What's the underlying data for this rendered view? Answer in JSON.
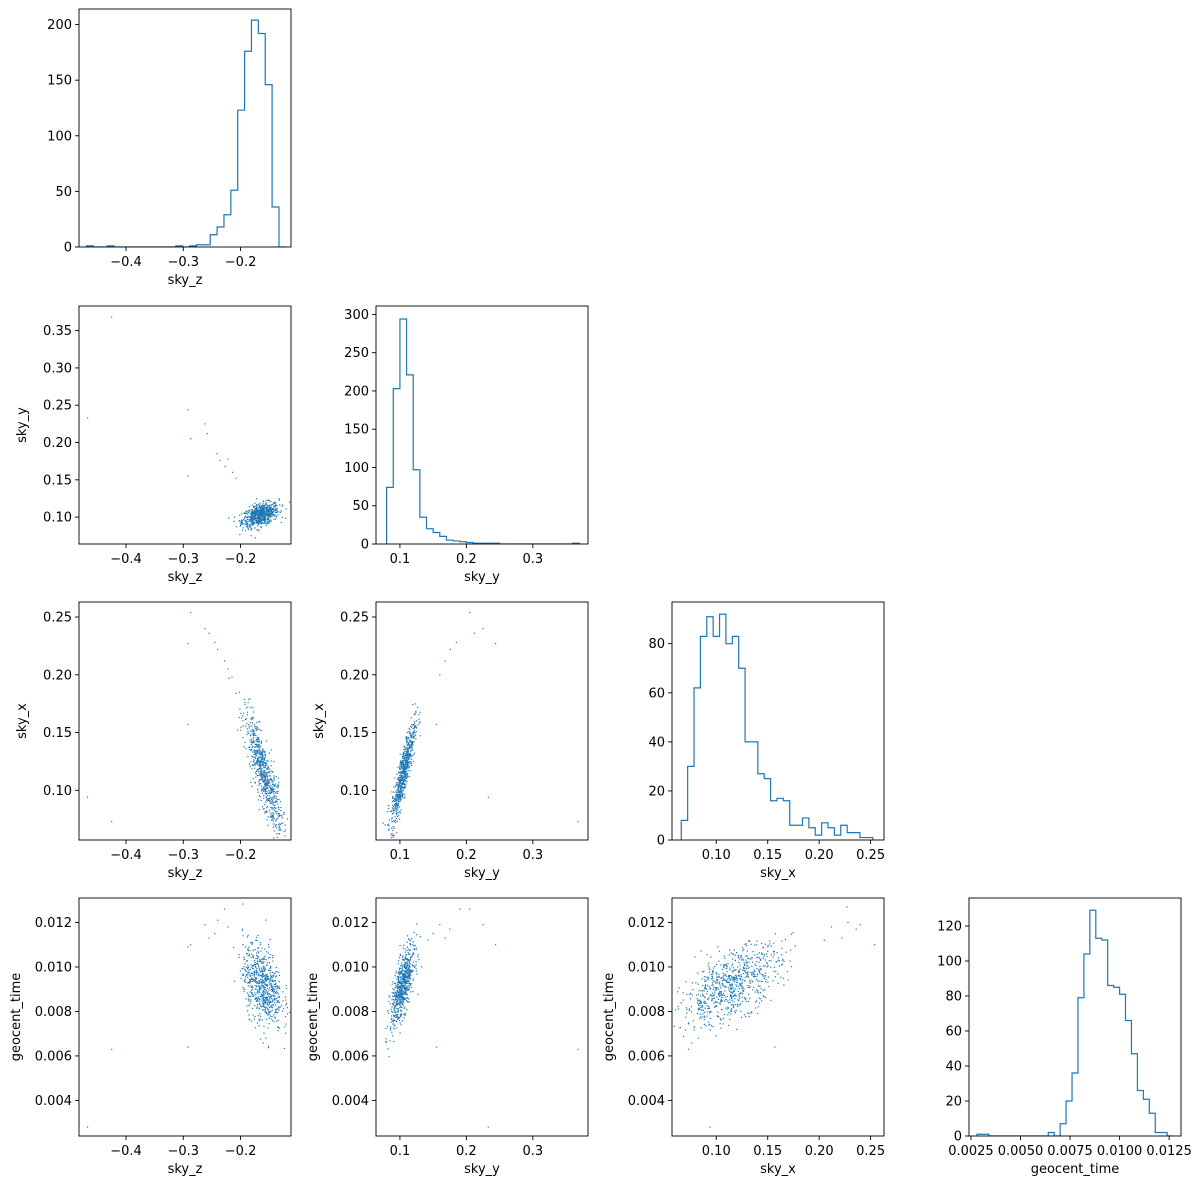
{
  "colors": {
    "accent": "#1f77b4",
    "axes": "#000000"
  },
  "chart_data": [
    {
      "id": "hist-sky_z",
      "type": "bar",
      "histtype": "step",
      "xlabel": "sky_z",
      "ylabel": "",
      "xlim": [
        -0.482,
        -0.112
      ],
      "ylim": [
        0,
        214
      ],
      "xticks": [
        -0.4,
        -0.3,
        -0.2
      ],
      "xtick_labels": [
        "−0.4",
        "−0.3",
        "−0.2"
      ],
      "yticks": [
        0,
        50,
        100,
        150,
        200
      ],
      "ytick_labels": [
        "0",
        "50",
        "100",
        "150",
        "200"
      ],
      "bin_edges": [
        -0.469,
        -0.457,
        -0.445,
        -0.433,
        -0.421,
        -0.409,
        -0.397,
        -0.385,
        -0.373,
        -0.361,
        -0.349,
        -0.337,
        -0.325,
        -0.313,
        -0.301,
        -0.289,
        -0.277,
        -0.265,
        -0.253,
        -0.241,
        -0.229,
        -0.217,
        -0.205,
        -0.193,
        -0.181,
        -0.169,
        -0.157,
        -0.145,
        -0.133,
        -0.121
      ],
      "values": [
        1,
        0,
        0,
        1,
        0,
        0,
        0,
        0,
        0,
        0,
        0,
        0,
        0,
        1,
        0,
        1,
        2,
        2,
        11,
        18,
        29,
        51,
        123,
        176,
        204,
        192,
        146,
        36,
        0
      ]
    },
    {
      "id": "scatter-sky_z-sky_y",
      "type": "scatter",
      "xlabel": "sky_z",
      "ylabel": "sky_y",
      "xlim": [
        -0.482,
        -0.112
      ],
      "ylim": [
        0.064,
        0.383
      ],
      "xticks": [
        -0.4,
        -0.3,
        -0.2
      ],
      "xtick_labels": [
        "−0.4",
        "−0.3",
        "−0.2"
      ],
      "yticks": [
        0.1,
        0.15,
        0.2,
        0.25,
        0.3,
        0.35
      ],
      "ytick_labels": [
        "0.10",
        "0.15",
        "0.20",
        "0.25",
        "0.30",
        "0.35"
      ],
      "points": [
        [
          -0.425,
          0.368
        ],
        [
          -0.467,
          0.233
        ],
        [
          -0.292,
          0.244
        ],
        [
          -0.287,
          0.205
        ],
        [
          -0.292,
          0.155
        ],
        [
          -0.262,
          0.225
        ],
        [
          -0.258,
          0.212
        ],
        [
          -0.241,
          0.185
        ],
        [
          -0.236,
          0.176
        ],
        [
          -0.227,
          0.168
        ],
        [
          -0.222,
          0.178
        ],
        [
          -0.214,
          0.16
        ],
        [
          -0.208,
          0.152
        ]
      ],
      "density_cloud": {
        "x_center": -0.165,
        "x_sd": 0.016,
        "y_center": 0.103,
        "y_sd": 0.008,
        "correlation": 0.45,
        "count": 700
      }
    },
    {
      "id": "hist-sky_y",
      "type": "bar",
      "histtype": "step",
      "xlabel": "sky_y",
      "ylabel": "",
      "xlim": [
        0.064,
        0.383
      ],
      "ylim": [
        0,
        311
      ],
      "xticks": [
        0.1,
        0.2,
        0.3
      ],
      "xtick_labels": [
        "0.1",
        "0.2",
        "0.3"
      ],
      "yticks": [
        0,
        50,
        100,
        150,
        200,
        250,
        300
      ],
      "ytick_labels": [
        "0",
        "50",
        "100",
        "150",
        "200",
        "250",
        "300"
      ],
      "bin_edges": [
        0.08,
        0.09,
        0.1,
        0.11,
        0.12,
        0.13,
        0.14,
        0.15,
        0.16,
        0.17,
        0.18,
        0.19,
        0.2,
        0.21,
        0.22,
        0.23,
        0.24,
        0.25,
        0.26,
        0.27,
        0.28,
        0.29,
        0.3,
        0.31,
        0.32,
        0.33,
        0.34,
        0.35,
        0.36,
        0.37
      ],
      "values": [
        74,
        203,
        294,
        221,
        97,
        35,
        20,
        15,
        10,
        5,
        4,
        3,
        2,
        1,
        1,
        1,
        1,
        0,
        0,
        0,
        0,
        0,
        0,
        0,
        0,
        0,
        0,
        0,
        1
      ]
    },
    {
      "id": "scatter-sky_z-sky_x",
      "type": "scatter",
      "xlabel": "sky_z",
      "ylabel": "sky_x",
      "xlim": [
        -0.482,
        -0.112
      ],
      "ylim": [
        0.057,
        0.263
      ],
      "xticks": [
        -0.4,
        -0.3,
        -0.2
      ],
      "xtick_labels": [
        "−0.4",
        "−0.3",
        "−0.2"
      ],
      "yticks": [
        0.1,
        0.15,
        0.2,
        0.25
      ],
      "ytick_labels": [
        "0.10",
        "0.15",
        "0.20",
        "0.25"
      ],
      "points": [
        [
          -0.467,
          0.094
        ],
        [
          -0.425,
          0.073
        ],
        [
          -0.292,
          0.227
        ],
        [
          -0.287,
          0.254
        ],
        [
          -0.292,
          0.157
        ],
        [
          -0.262,
          0.24
        ],
        [
          -0.255,
          0.236
        ],
        [
          -0.245,
          0.228
        ],
        [
          -0.24,
          0.222
        ],
        [
          -0.228,
          0.212
        ],
        [
          -0.222,
          0.205
        ],
        [
          -0.215,
          0.198
        ]
      ],
      "density_cloud": {
        "x_center": -0.16,
        "x_sd": 0.016,
        "y_center": 0.115,
        "y_sd": 0.025,
        "correlation": -0.85,
        "count": 700
      }
    },
    {
      "id": "scatter-sky_y-sky_x",
      "type": "scatter",
      "xlabel": "sky_y",
      "ylabel": "sky_x",
      "xlim": [
        0.064,
        0.383
      ],
      "ylim": [
        0.057,
        0.263
      ],
      "xticks": [
        0.1,
        0.2,
        0.3
      ],
      "xtick_labels": [
        "0.1",
        "0.2",
        "0.3"
      ],
      "yticks": [
        0.1,
        0.15,
        0.2,
        0.25
      ],
      "ytick_labels": [
        "0.10",
        "0.15",
        "0.20",
        "0.25"
      ],
      "points": [
        [
          0.368,
          0.073
        ],
        [
          0.233,
          0.094
        ],
        [
          0.244,
          0.227
        ],
        [
          0.205,
          0.254
        ],
        [
          0.225,
          0.24
        ],
        [
          0.212,
          0.236
        ],
        [
          0.185,
          0.228
        ],
        [
          0.176,
          0.222
        ],
        [
          0.168,
          0.212
        ],
        [
          0.16,
          0.2
        ],
        [
          0.155,
          0.157
        ]
      ],
      "density_cloud": {
        "x_center": 0.105,
        "x_sd": 0.009,
        "y_center": 0.115,
        "y_sd": 0.022,
        "correlation": 0.88,
        "count": 700
      }
    },
    {
      "id": "hist-sky_x",
      "type": "bar",
      "histtype": "step",
      "xlabel": "sky_x",
      "ylabel": "",
      "xlim": [
        0.057,
        0.263
      ],
      "ylim": [
        0,
        97
      ],
      "xticks": [
        0.1,
        0.15,
        0.2,
        0.25
      ],
      "xtick_labels": [
        "0.10",
        "0.15",
        "0.20",
        "0.25"
      ],
      "yticks": [
        0,
        20,
        40,
        60,
        80
      ],
      "ytick_labels": [
        "0",
        "20",
        "40",
        "60",
        "80"
      ],
      "bin_edges": [
        0.066,
        0.0722,
        0.0784,
        0.0846,
        0.0908,
        0.097,
        0.1032,
        0.1094,
        0.1156,
        0.1218,
        0.128,
        0.1342,
        0.1404,
        0.1466,
        0.1528,
        0.159,
        0.1652,
        0.1714,
        0.1776,
        0.1838,
        0.19,
        0.1962,
        0.2024,
        0.2086,
        0.2148,
        0.221,
        0.2272,
        0.2334,
        0.2396,
        0.2458,
        0.252
      ],
      "values": [
        8,
        30,
        62,
        83,
        91,
        83,
        92,
        80,
        83,
        70,
        40,
        40,
        27,
        25,
        16,
        17,
        16,
        6,
        6,
        9,
        5,
        2,
        7,
        5,
        2,
        6,
        3,
        3,
        1,
        1
      ]
    },
    {
      "id": "scatter-sky_z-geocent_time",
      "type": "scatter",
      "xlabel": "sky_z",
      "ylabel": "geocent_time",
      "xlim": [
        -0.482,
        -0.112
      ],
      "ylim": [
        0.0024,
        0.0131
      ],
      "xticks": [
        -0.4,
        -0.3,
        -0.2
      ],
      "xtick_labels": [
        "−0.4",
        "−0.3",
        "−0.2"
      ],
      "yticks": [
        0.004,
        0.006,
        0.008,
        0.01,
        0.012
      ],
      "ytick_labels": [
        "0.004",
        "0.006",
        "0.008",
        "0.010",
        "0.012"
      ],
      "points": [
        [
          -0.467,
          0.0028
        ],
        [
          -0.425,
          0.0063
        ],
        [
          -0.292,
          0.0064
        ],
        [
          -0.287,
          0.011
        ],
        [
          -0.292,
          0.0109
        ],
        [
          -0.262,
          0.0119
        ],
        [
          -0.255,
          0.0113
        ],
        [
          -0.245,
          0.0115
        ],
        [
          -0.24,
          0.0121
        ],
        [
          -0.228,
          0.0126
        ],
        [
          -0.222,
          0.0118
        ]
      ],
      "density_cloud": {
        "x_center": -0.162,
        "x_sd": 0.017,
        "y_center": 0.0092,
        "y_sd": 0.0009,
        "correlation": -0.35,
        "count": 700
      }
    },
    {
      "id": "scatter-sky_y-geocent_time",
      "type": "scatter",
      "xlabel": "sky_y",
      "ylabel": "geocent_time",
      "xlim": [
        0.064,
        0.383
      ],
      "ylim": [
        0.0024,
        0.0131
      ],
      "xticks": [
        0.1,
        0.2,
        0.3
      ],
      "xtick_labels": [
        "0.1",
        "0.2",
        "0.3"
      ],
      "yticks": [
        0.004,
        0.006,
        0.008,
        0.01,
        0.012
      ],
      "ytick_labels": [
        "0.004",
        "0.006",
        "0.008",
        "0.010",
        "0.012"
      ],
      "points": [
        [
          0.368,
          0.0063
        ],
        [
          0.233,
          0.0028
        ],
        [
          0.244,
          0.011
        ],
        [
          0.205,
          0.0126
        ],
        [
          0.225,
          0.0119
        ],
        [
          0.19,
          0.0126
        ],
        [
          0.155,
          0.0064
        ],
        [
          0.175,
          0.0117
        ],
        [
          0.168,
          0.0113
        ],
        [
          0.16,
          0.0119
        ],
        [
          0.15,
          0.0115
        ]
      ],
      "density_cloud": {
        "x_center": 0.104,
        "x_sd": 0.009,
        "y_center": 0.0091,
        "y_sd": 0.0009,
        "correlation": 0.7,
        "count": 700
      }
    },
    {
      "id": "scatter-sky_x-geocent_time",
      "type": "scatter",
      "xlabel": "sky_x",
      "ylabel": "geocent_time",
      "xlim": [
        0.057,
        0.263
      ],
      "ylim": [
        0.0024,
        0.0131
      ],
      "xticks": [
        0.1,
        0.15,
        0.2,
        0.25
      ],
      "xtick_labels": [
        "0.10",
        "0.15",
        "0.20",
        "0.25"
      ],
      "yticks": [
        0.004,
        0.006,
        0.008,
        0.01,
        0.012
      ],
      "ytick_labels": [
        "0.004",
        "0.006",
        "0.008",
        "0.010",
        "0.012"
      ],
      "points": [
        [
          0.094,
          0.0028
        ],
        [
          0.073,
          0.0063
        ],
        [
          0.157,
          0.0064
        ],
        [
          0.227,
          0.0127
        ],
        [
          0.254,
          0.011
        ],
        [
          0.24,
          0.0119
        ],
        [
          0.236,
          0.0117
        ],
        [
          0.228,
          0.012
        ],
        [
          0.222,
          0.0113
        ],
        [
          0.212,
          0.0118
        ],
        [
          0.205,
          0.0112
        ]
      ],
      "density_cloud": {
        "x_center": 0.115,
        "x_sd": 0.024,
        "y_center": 0.0092,
        "y_sd": 0.0009,
        "correlation": 0.6,
        "count": 750
      }
    },
    {
      "id": "hist-geocent_time",
      "type": "bar",
      "histtype": "step",
      "xlabel": "geocent_time",
      "ylabel": "",
      "xlim": [
        0.0024,
        0.0131
      ],
      "ylim": [
        0,
        136
      ],
      "xticks": [
        0.0025,
        0.005,
        0.0075,
        0.01,
        0.0125
      ],
      "xtick_labels": [
        "0.0025",
        "0.0050",
        "0.0075",
        "0.0100",
        "0.0125"
      ],
      "yticks": [
        0,
        20,
        40,
        60,
        80,
        100,
        120
      ],
      "ytick_labels": [
        "0",
        "20",
        "40",
        "60",
        "80",
        "100",
        "120"
      ],
      "bin_edges": [
        0.0028,
        0.0031,
        0.0034,
        0.0037,
        0.004,
        0.0043,
        0.0046,
        0.0049,
        0.0052,
        0.0055,
        0.0058,
        0.0061,
        0.0064,
        0.0067,
        0.007,
        0.0073,
        0.0076,
        0.0079,
        0.0082,
        0.0085,
        0.0088,
        0.0091,
        0.0094,
        0.0097,
        0.01,
        0.0103,
        0.0106,
        0.0109,
        0.0112,
        0.0115,
        0.0118,
        0.0121,
        0.0124,
        0.0127
      ],
      "values": [
        1,
        1,
        0,
        0,
        0,
        0,
        0,
        0,
        0,
        0,
        0,
        0,
        2,
        0,
        7,
        20,
        36,
        79,
        104,
        129,
        113,
        112,
        86,
        85,
        81,
        66,
        47,
        26,
        21,
        13,
        2,
        2,
        0
      ]
    }
  ]
}
